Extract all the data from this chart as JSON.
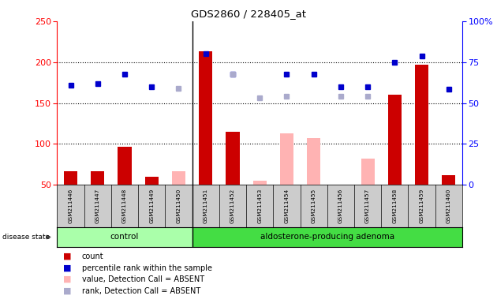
{
  "title": "GDS2860 / 228405_at",
  "samples": [
    "GSM211446",
    "GSM211447",
    "GSM211448",
    "GSM211449",
    "GSM211450",
    "GSM211451",
    "GSM211452",
    "GSM211453",
    "GSM211454",
    "GSM211455",
    "GSM211456",
    "GSM211457",
    "GSM211458",
    "GSM211459",
    "GSM211460"
  ],
  "count_values": [
    67,
    67,
    97,
    60,
    null,
    213,
    115,
    null,
    null,
    null,
    null,
    null,
    160,
    197,
    62
  ],
  "rank_values": [
    172,
    174,
    185,
    170,
    null,
    210,
    185,
    null,
    185,
    185,
    170,
    170,
    200,
    207,
    167
  ],
  "value_absent": [
    null,
    null,
    null,
    null,
    67,
    null,
    null,
    55,
    113,
    107,
    null,
    82,
    null,
    null,
    null
  ],
  "rank_absent": [
    null,
    null,
    null,
    null,
    168,
    null,
    185,
    156,
    158,
    null,
    158,
    158,
    null,
    null,
    null
  ],
  "ylim_left": [
    50,
    250
  ],
  "ylim_right": [
    0,
    100
  ],
  "yticks_left": [
    50,
    100,
    150,
    200,
    250
  ],
  "yticks_right": [
    0,
    25,
    50,
    75,
    100
  ],
  "bar_color": "#cc0000",
  "rank_color": "#0000cc",
  "value_absent_color": "#ffb3b3",
  "rank_absent_color": "#aaaacc",
  "control_bg": "#aaffaa",
  "adenoma_bg": "#44dd44",
  "xtick_bg": "#cccccc",
  "legend_items": [
    {
      "label": "count",
      "color": "#cc0000"
    },
    {
      "label": "percentile rank within the sample",
      "color": "#0000cc"
    },
    {
      "label": "value, Detection Call = ABSENT",
      "color": "#ffb3b3"
    },
    {
      "label": "rank, Detection Call = ABSENT",
      "color": "#aaaacc"
    }
  ],
  "n_control": 5,
  "n_total": 15
}
